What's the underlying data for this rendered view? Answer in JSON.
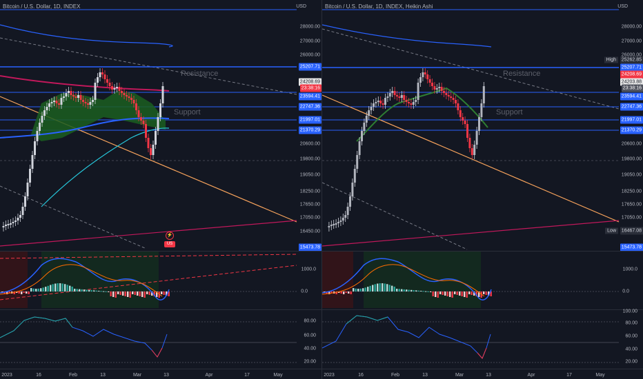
{
  "left": {
    "title": "Bitcoin / U.S. Dollar, 1D, INDEX",
    "currency": "USD",
    "price_ticks": [
      "28000.00",
      "27000.00",
      "26000.00",
      "20600.00",
      "19800.00",
      "19050.00",
      "18250.00",
      "17650.00",
      "17050.00",
      "16450.00"
    ],
    "level_tags": {
      "resistance": "25207.71",
      "last_price": "24208.69",
      "countdown": "23:38:16",
      "level_23594": "23594.41",
      "level_22747": "22747.36",
      "level_21997": "21997.01",
      "level_21370": "21370.29",
      "level_15473": "15473.78"
    },
    "annotations": {
      "resistance": "Resistance",
      "support": "Support"
    },
    "macd_ticks": [
      "1000.0",
      "0.0"
    ],
    "rsi_ticks": [
      "80.00",
      "60.00",
      "40.00",
      "20.00"
    ],
    "date_ticks": [
      "2023",
      "16",
      "Feb",
      "13",
      "Mar",
      "13",
      "Apr",
      "17",
      "May"
    ],
    "event_badges": {
      "lightning": "⚡",
      "flag": "US"
    }
  },
  "right": {
    "title": "Bitcoin / U.S. Dollar, 1D, INDEX, Heikin Ashi",
    "currency": "USD",
    "price_ticks": [
      "28000.00",
      "27000.00",
      "26000.00",
      "20600.00",
      "19800.00",
      "19050.00",
      "18250.00",
      "17650.00",
      "17050.00",
      "16450.00"
    ],
    "level_tags": {
      "high_label": "High",
      "high": "25262.85",
      "resistance": "25207.71",
      "last_price": "24208.69",
      "prev_price": "24203.88",
      "countdown": "23:38:16",
      "level_23594": "23594.41",
      "level_22747": "22747.36",
      "level_21997": "21997.01",
      "level_21370": "21370.29",
      "low_label": "Low",
      "low": "16467.08",
      "level_15473": "15473.78"
    },
    "annotations": {
      "resistance": "Resistance",
      "support": "Support"
    },
    "macd_ticks": [
      "1000.0",
      "0.0"
    ],
    "rsi_ticks": [
      "100.00",
      "80.00",
      "60.00",
      "40.00",
      "20.00"
    ],
    "date_ticks": [
      "2023",
      "16",
      "Feb",
      "13",
      "Mar",
      "13",
      "Apr",
      "17",
      "May"
    ]
  },
  "colors": {
    "background": "#131722",
    "resistance_line": "#2962ff",
    "level_line": "#2962ff",
    "trend_orange": "#f7a35c",
    "trend_pink": "#c2185b",
    "up_candle": "#d1d4dc",
    "down_candle": "#f23645",
    "ema_blue": "#2962ff",
    "ema_teal": "#26c6da",
    "ribbon_green": "#1b5e20",
    "macd_up": "#26a69a",
    "macd_down": "#f23645",
    "rsi_line": "#2962ff"
  }
}
